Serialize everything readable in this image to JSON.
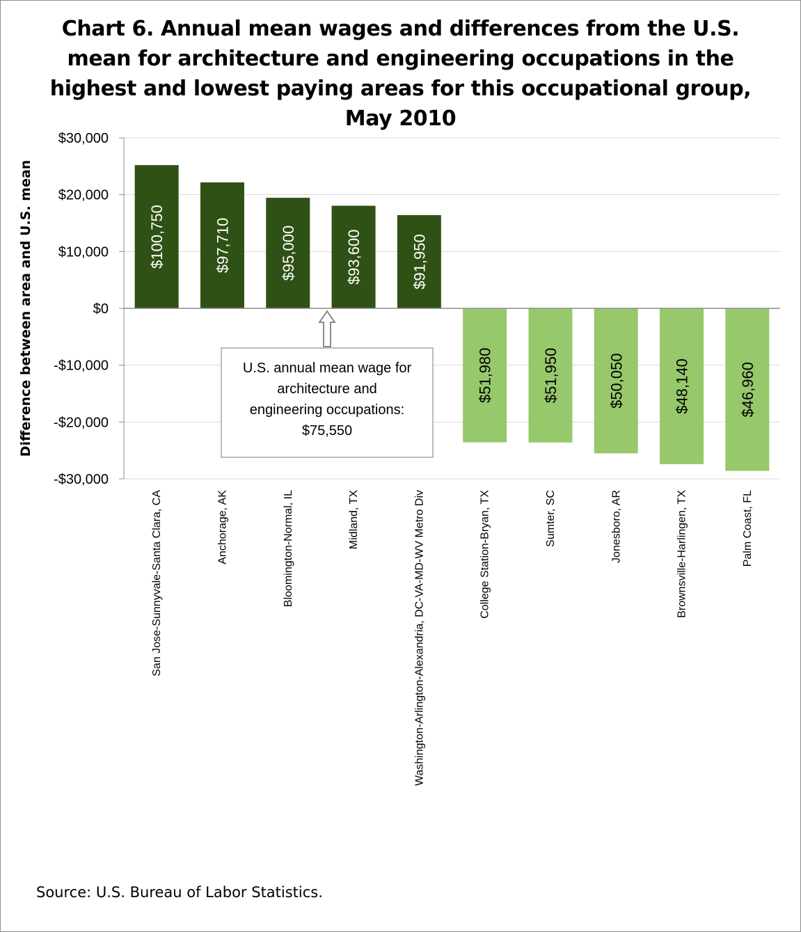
{
  "chart_data": {
    "type": "bar",
    "title": "Chart 6. Annual mean wages and differences from the U.S. mean for architecture and engineering occupations in the highest and lowest paying areas for this occupational group, May 2010",
    "ylabel": "Difference between area and U.S. mean",
    "xlabel": "",
    "ylim": [
      -30000,
      30000
    ],
    "y_ticks": [
      30000,
      20000,
      10000,
      0,
      -10000,
      -20000,
      -30000
    ],
    "y_tick_labels": [
      "$30,000",
      "$20,000",
      "$10,000",
      "$0",
      "-$10,000",
      "-$20,000",
      "-$30,000"
    ],
    "grid": true,
    "categories": [
      "San Jose-Sunnyvale-Santa Clara, CA",
      "Anchorage, AK",
      "Bloomington-Normal, IL",
      "Midland, TX",
      "Washington-Arlington-Alexandria, DC-VA-MD-WV Metro Div",
      "College Station-Bryan, TX",
      "Sumter, SC",
      "Jonesboro, AR",
      "Brownsville-Harlingen, TX",
      "Palm Coast, FL"
    ],
    "values": [
      25200,
      22160,
      19450,
      18050,
      16400,
      -23570,
      -23600,
      -25500,
      -27410,
      -28590
    ],
    "data_labels": [
      "$100,750",
      "$97,710",
      "$95,000",
      "$93,600",
      "$91,950",
      "$51,980",
      "$51,950",
      "$50,050",
      "$48,140",
      "$46,960"
    ],
    "colors": {
      "positive": "#2f5115",
      "negative": "#97c86b",
      "positive_label": "#ffffff",
      "negative_label": "#000000",
      "grid": "#d9d9d9",
      "axis": "#8c8c8c"
    },
    "annotation": {
      "lines": [
        "U.S. annual mean wage for",
        "architecture and",
        "engineering occupations:",
        "$75,550"
      ]
    }
  },
  "footer": {
    "source": "Source: U.S. Bureau of Labor Statistics."
  }
}
